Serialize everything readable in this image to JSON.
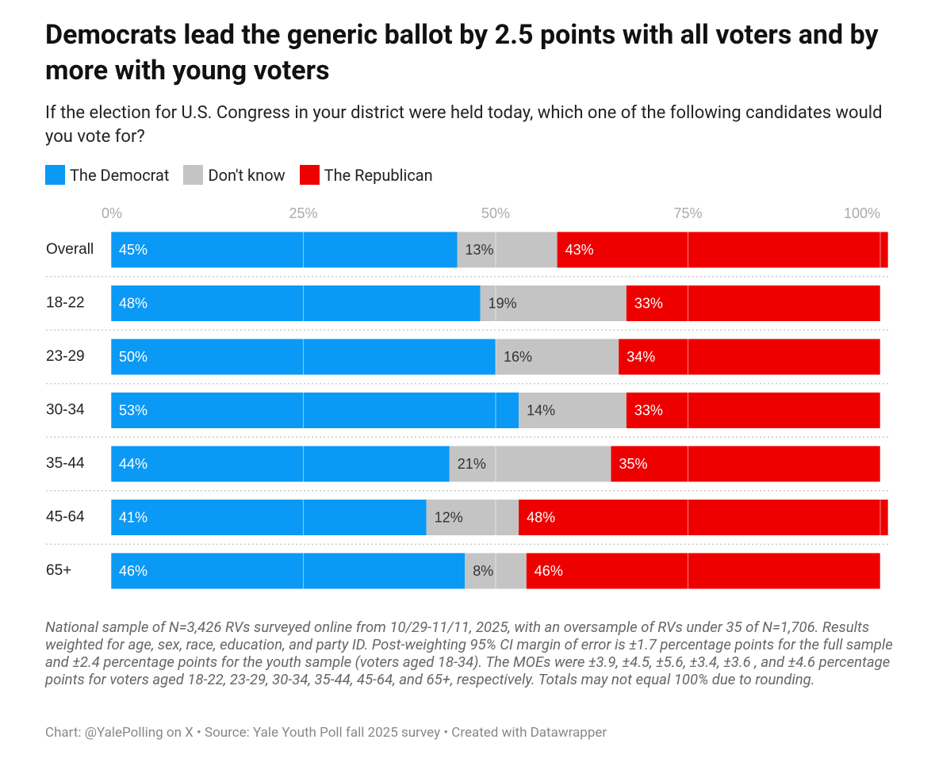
{
  "chart_data": {
    "type": "stacked-bar-horizontal",
    "title": "Democrats lead the generic ballot by 2.5 points with all voters and by more with young voters",
    "subtitle": "If the election for U.S. Congress in your district were held today, which one of the following candidates would you vote for?",
    "categories": [
      "Overall",
      "18-22",
      "23-29",
      "30-34",
      "35-44",
      "45-64",
      "65+"
    ],
    "series": [
      {
        "name": "The Democrat",
        "color": "#0a99f5",
        "values": [
          45,
          48,
          50,
          53,
          44,
          41,
          46
        ],
        "value_labels": [
          "45%",
          "48%",
          "50%",
          "53%",
          "44%",
          "41%",
          "46%"
        ]
      },
      {
        "name": "Don't know",
        "color": "#c4c4c4",
        "values": [
          13,
          19,
          16,
          14,
          21,
          12,
          8
        ],
        "value_labels": [
          "13%",
          "19%",
          "16%",
          "14%",
          "21%",
          "12%",
          "8%"
        ]
      },
      {
        "name": "The Republican",
        "color": "#ee0000",
        "values": [
          43,
          33,
          34,
          33,
          35,
          48,
          46
        ],
        "value_labels": [
          "43%",
          "33%",
          "34%",
          "33%",
          "35%",
          "48%",
          "46%"
        ]
      }
    ],
    "xlim": [
      0,
      100
    ],
    "xticks": [
      {
        "value": 0,
        "label": "0%"
      },
      {
        "value": 25,
        "label": "25%"
      },
      {
        "value": 50,
        "label": "50%"
      },
      {
        "value": 75,
        "label": "75%"
      },
      {
        "value": 100,
        "label": "100%"
      }
    ],
    "grid": true,
    "note": "National sample of N=3,426 RVs surveyed online from 10/29-11/11, 2025, with an oversample of RVs under 35 of N=1,706. Results weighted for age, sex, race, education, and party ID. Post-weighting 95% CI margin of error is ±1.7 percentage points for the full sample and ±2.4 percentage points for the youth sample (voters aged 18-34). The MOEs were ±3.9, ±4.5, ±5.6, ±3.4, ±3.6 , and ±4.6 percentage points for voters aged 18-22, 23-29, 30-34, 35-44, 45-64, and 65+, respectively. Totals may not equal 100% due to rounding.",
    "credit": "Chart: @YalePolling on X • Source: Yale Youth Poll fall 2025 survey • Created with Datawrapper"
  }
}
